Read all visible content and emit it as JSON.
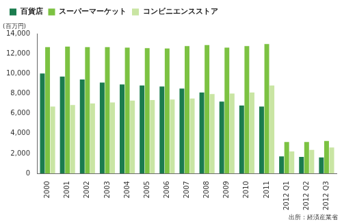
{
  "chart_data": {
    "type": "bar",
    "ylabel": "(百万円)",
    "annotations": [
      "出所：経済産業省"
    ],
    "categories": [
      "2000",
      "2001",
      "2002",
      "2003",
      "2004",
      "2005",
      "2006",
      "2007",
      "2008",
      "2009",
      "2010",
      "2011",
      "2012 Q1",
      "2012 Q2",
      "2012 Q3"
    ],
    "series": [
      {
        "name": "百貨店",
        "color": "#1b7c4e",
        "values": [
          10000,
          9700,
          9400,
          9100,
          8900,
          8800,
          8700,
          8500,
          8100,
          7200,
          6800,
          6700,
          1700,
          1650,
          1600
        ]
      },
      {
        "name": "スーパーマーケット",
        "color": "#7cc242",
        "values": [
          12650,
          12700,
          12650,
          12650,
          12600,
          12550,
          12500,
          12750,
          12850,
          12600,
          12750,
          12950,
          3150,
          3150,
          3250
        ]
      },
      {
        "name": "コンビニエンスストア",
        "color": "#c9e5a3",
        "values": [
          6700,
          6850,
          7000,
          7100,
          7300,
          7350,
          7400,
          7500,
          7950,
          8000,
          8100,
          8800,
          2200,
          2350,
          2600
        ]
      }
    ],
    "ylim": [
      0,
      14000
    ],
    "yticks": [
      0,
      {
        "value": 2000,
        "label": "2,000"
      },
      {
        "value": 4000,
        "label": "4,000"
      },
      {
        "value": 6000,
        "label": "6,000"
      },
      {
        "value": 8000,
        "label": "8,000"
      },
      {
        "value": 10000,
        "label": "10,000"
      },
      {
        "value": 12000,
        "label": "12,000"
      },
      {
        "value": 14000,
        "label": "14,000"
      }
    ],
    "grid": false,
    "legend": "top-left"
  }
}
